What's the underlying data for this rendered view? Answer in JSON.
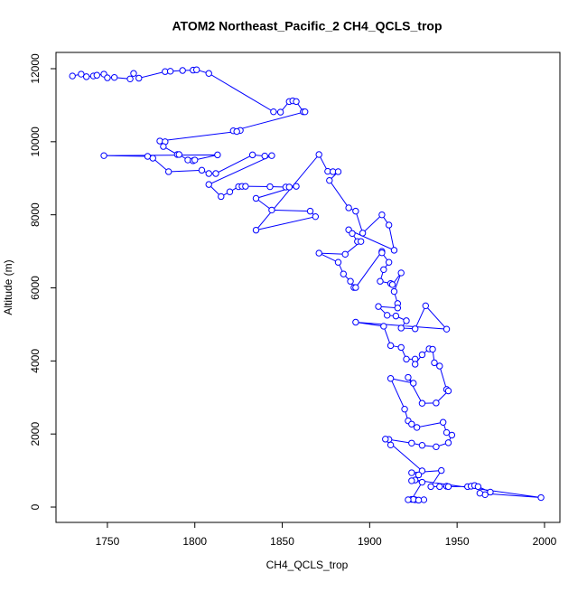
{
  "chart_data": {
    "type": "line",
    "title": "ATOM2 Northeast_Pacific_2 CH4_QCLS_trop",
    "x_label": "CH4_QCLS_trop",
    "y_label": "Altitude (m)",
    "xlim": [
      1720.6,
      2008.8
    ],
    "xticks": [
      1750,
      1800,
      1850,
      1900,
      1950,
      2000
    ],
    "ylim": [
      -420,
      12445
    ],
    "yticks": [
      0,
      2000,
      4000,
      6000,
      8000,
      10000,
      12000
    ],
    "color": "#0000ff",
    "x": [
      1730,
      1735,
      1738,
      1742,
      1744,
      1748,
      1750,
      1754,
      1763,
      1765,
      1768,
      1783,
      1786,
      1793,
      1799,
      1801,
      1808,
      1845,
      1849,
      1854,
      1856,
      1858,
      1862,
      1863,
      1822,
      1826,
      1824,
      1780,
      1783,
      1782,
      1790,
      1791,
      1796,
      1799,
      1800,
      1813,
      1748,
      1773,
      1776,
      1785,
      1804,
      1808,
      1812,
      1833,
      1840,
      1844,
      1808,
      1815,
      1820,
      1825,
      1827,
      1829,
      1843,
      1852,
      1854,
      1858,
      1835,
      1844,
      1866,
      1869,
      1835,
      1871,
      1876,
      1879,
      1882,
      1877,
      1888,
      1892,
      1896,
      1907,
      1911,
      1914,
      1888,
      1890,
      1893,
      1895,
      1886,
      1871,
      1882,
      1885,
      1889,
      1891,
      1892,
      1907,
      1907,
      1911,
      1908,
      1906,
      1912,
      1913,
      1918,
      1914,
      1916,
      1916,
      1905,
      1910,
      1915,
      1921,
      1918,
      1926,
      1932,
      1944,
      1892,
      1908,
      1912,
      1918,
      1921,
      1926,
      1926,
      1930,
      1934,
      1936,
      1937,
      1940,
      1944,
      1945,
      1938,
      1930,
      1922,
      1925,
      1912,
      1920,
      1922,
      1924,
      1927,
      1942,
      1944,
      1947,
      1945,
      1938,
      1930,
      1924,
      1911,
      1912,
      1909,
      1930,
      1928,
      1924,
      1941,
      1935,
      1940,
      1944,
      1945,
      1956,
      1958,
      1960,
      1962,
      1969,
      1966,
      1963,
      1998,
      1926,
      1924,
      1930,
      1924,
      1926,
      1931,
      1925,
      1922,
      1928
    ],
    "values": [
      11800,
      11850,
      11780,
      11800,
      11820,
      11850,
      11750,
      11760,
      11720,
      11870,
      11740,
      11920,
      11930,
      11950,
      11960,
      11970,
      11870,
      10820,
      10810,
      11100,
      11120,
      11100,
      10820,
      10820,
      10300,
      10310,
      10280,
      10020,
      10000,
      9870,
      9650,
      9650,
      9500,
      9480,
      9500,
      9640,
      9620,
      9600,
      9550,
      9180,
      9220,
      9130,
      9130,
      9640,
      9610,
      9620,
      8830,
      8500,
      8630,
      8770,
      8780,
      8780,
      8770,
      8760,
      8760,
      8780,
      8450,
      8130,
      8100,
      7950,
      7580,
      9650,
      9190,
      9180,
      9180,
      8940,
      8190,
      8100,
      7500,
      8000,
      7720,
      7030,
      7590,
      7490,
      7270,
      7270,
      6920,
      6950,
      6700,
      6380,
      6180,
      6010,
      6010,
      7000,
      6960,
      6700,
      6500,
      6180,
      6120,
      6090,
      6410,
      5900,
      5570,
      5450,
      5490,
      5250,
      5230,
      5100,
      4900,
      4880,
      5510,
      4870,
      5060,
      4950,
      4420,
      4370,
      4050,
      4050,
      3910,
      4170,
      4330,
      4320,
      3950,
      3860,
      3220,
      3180,
      2850,
      2840,
      3550,
      3390,
      3520,
      2680,
      2360,
      2270,
      2180,
      2320,
      2040,
      1970,
      1760,
      1650,
      1690,
      1750,
      1850,
      1700,
      1860,
      990,
      880,
      940,
      1000,
      560,
      560,
      570,
      560,
      560,
      570,
      590,
      560,
      410,
      340,
      380,
      260,
      740,
      720,
      680,
      210,
      200,
      200,
      210,
      200,
      190
    ]
  }
}
